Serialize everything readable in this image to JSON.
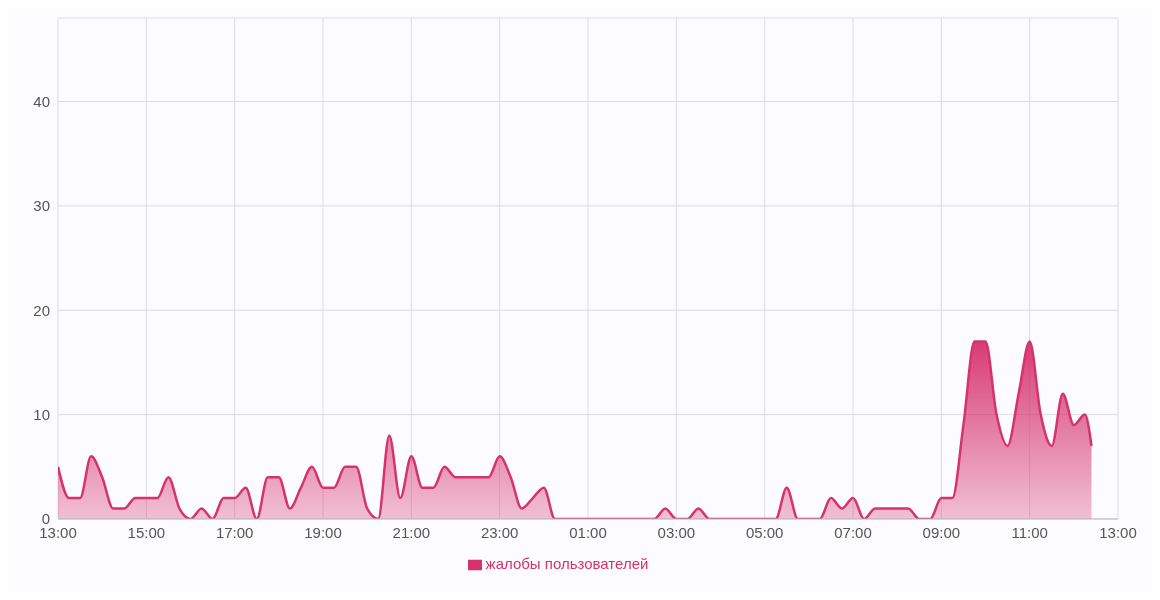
{
  "chart_data": {
    "type": "area",
    "x": [
      "--01-01T13:00",
      "--01-01T13:15",
      "--01-01T13:30",
      "--01-01T13:45",
      "--01-01T14:00",
      "--01-01T14:15",
      "--01-01T14:30",
      "--01-01T14:45",
      "--01-01T15:00",
      "--01-01T15:15",
      "--01-01T15:30",
      "--01-01T15:45",
      "--01-01T16:00",
      "--01-01T16:15",
      "--01-01T16:30",
      "--01-01T16:45",
      "--01-01T17:00",
      "--01-01T17:15",
      "--01-01T17:30",
      "--01-01T17:45",
      "--01-01T18:00",
      "--01-01T18:15",
      "--01-01T18:30",
      "--01-01T18:45",
      "--01-01T19:00",
      "--01-01T19:15",
      "--01-01T19:30",
      "--01-01T19:45",
      "--01-01T20:00",
      "--01-01T20:15",
      "--01-01T20:30",
      "--01-01T20:45",
      "--01-01T21:00",
      "--01-01T21:15",
      "--01-01T21:30",
      "--01-01T21:45",
      "--01-01T22:00",
      "--01-01T22:15",
      "--01-01T22:30",
      "--01-01T22:45",
      "--01-01T23:00",
      "--01-01T23:15",
      "--01-01T23:30",
      "--01-01T23:45",
      "--01-02T00:00",
      "--01-02T00:15",
      "--01-02T00:30",
      "--01-02T00:45",
      "--01-02T01:00",
      "--01-02T01:15",
      "--01-02T01:30",
      "--01-02T01:45",
      "--01-02T02:00",
      "--01-02T02:15",
      "--01-02T02:30",
      "--01-02T02:45",
      "--01-02T03:00",
      "--01-02T03:15",
      "--01-02T03:30",
      "--01-02T03:45",
      "--01-02T04:00",
      "--01-02T04:15",
      "--01-02T04:30",
      "--01-02T04:45",
      "--01-02T05:00",
      "--01-02T05:15",
      "--01-02T05:30",
      "--01-02T05:45",
      "--01-02T06:00",
      "--01-02T06:15",
      "--01-02T06:30",
      "--01-02T06:45",
      "--01-02T07:00",
      "--01-02T07:15",
      "--01-02T07:30",
      "--01-02T07:45",
      "--01-02T08:00",
      "--01-02T08:15",
      "--01-02T08:30",
      "--01-02T08:45",
      "--01-02T09:00",
      "--01-02T09:15",
      "--01-02T09:30",
      "--01-02T09:45",
      "--01-02T10:00",
      "--01-02T10:15",
      "--01-02T10:30",
      "--01-02T10:45",
      "--01-02T11:00",
      "--01-02T11:15",
      "--01-02T11:30",
      "--01-02T11:45",
      "--01-02T12:00",
      "--01-02T12:15",
      "--01-02T12:24"
    ],
    "series": [
      {
        "name": "жалобы пользователей",
        "color": "#d6336c",
        "values": [
          5,
          2,
          2,
          6,
          4,
          1,
          1,
          2,
          2,
          2,
          4,
          1,
          0,
          1,
          0,
          2,
          2,
          3,
          0,
          4,
          4,
          1,
          3,
          5,
          3,
          3,
          5,
          5,
          1,
          0,
          8,
          2,
          6,
          3,
          3,
          5,
          4,
          4,
          4,
          4,
          6,
          4,
          1,
          2,
          3,
          0,
          0,
          0,
          0,
          0,
          0,
          0,
          0,
          0,
          0,
          1,
          0,
          0,
          1,
          0,
          0,
          0,
          0,
          0,
          0,
          0,
          3,
          0,
          0,
          0,
          2,
          1,
          2,
          0,
          1,
          1,
          1,
          1,
          0,
          0,
          2,
          2,
          9,
          17,
          17,
          10,
          7,
          12,
          17,
          10,
          7,
          12,
          9,
          10,
          7
        ]
      }
    ],
    "xlim": [
      "--01-01T13:00",
      "--01-02T13:00"
    ],
    "xticks": [
      {
        "value": "--01-01T13:00",
        "label": "13:00"
      },
      {
        "value": "--01-01T15:00",
        "label": "15:00"
      },
      {
        "value": "--01-01T17:00",
        "label": "17:00"
      },
      {
        "value": "--01-01T19:00",
        "label": "19:00"
      },
      {
        "value": "--01-01T21:00",
        "label": "21:00"
      },
      {
        "value": "--01-01T23:00",
        "label": "23:00"
      },
      {
        "value": "--01-02T01:00",
        "label": "01:00"
      },
      {
        "value": "--01-02T03:00",
        "label": "03:00"
      },
      {
        "value": "--01-02T05:00",
        "label": "05:00"
      },
      {
        "value": "--01-02T07:00",
        "label": "07:00"
      },
      {
        "value": "--01-02T09:00",
        "label": "09:00"
      },
      {
        "value": "--01-02T11:00",
        "label": "11:00"
      },
      {
        "value": "--01-02T13:00",
        "label": "13:00"
      }
    ],
    "ylim": [
      0,
      48
    ],
    "yticks": [
      0,
      10,
      20,
      30,
      40
    ],
    "grid": true,
    "legend": "bottom",
    "marker": "none",
    "line_style": "solid"
  }
}
